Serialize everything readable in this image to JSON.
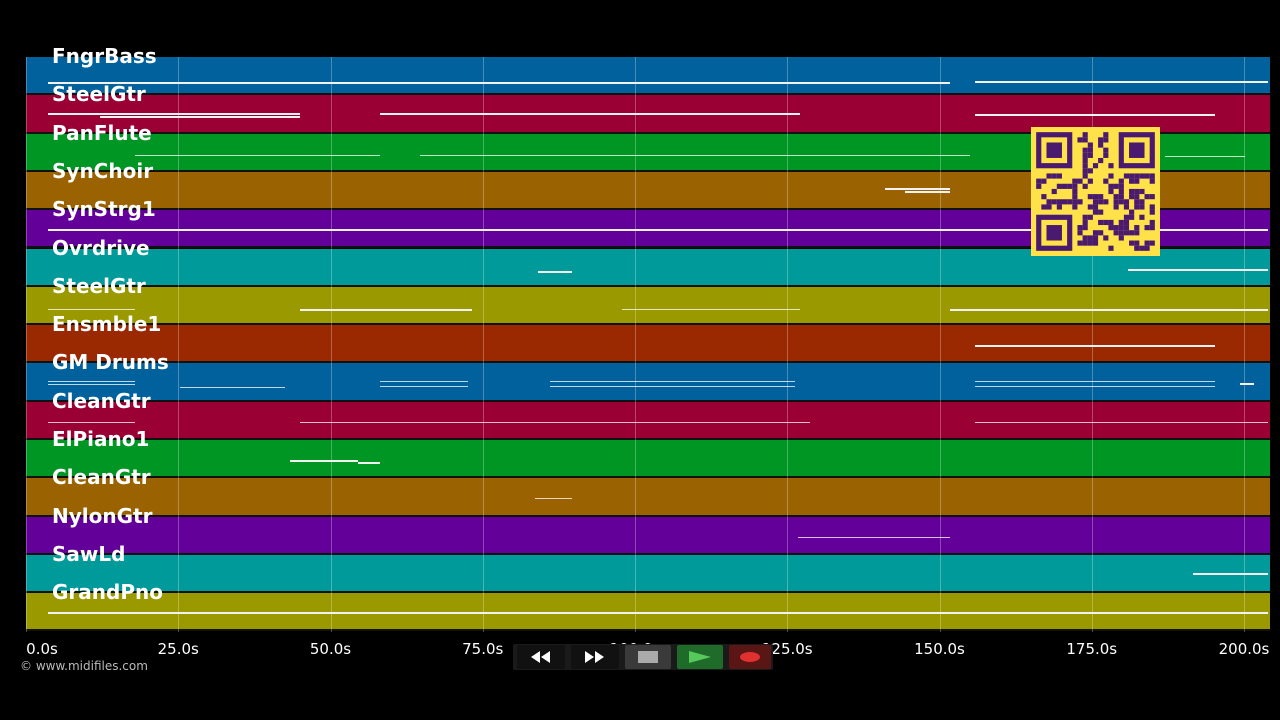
{
  "tracks": [
    {
      "name": "FngrBass",
      "color": "#00619c"
    },
    {
      "name": "SteelGtr",
      "color": "#9a0033"
    },
    {
      "name": "PanFlute",
      "color": "#009624"
    },
    {
      "name": "SynChoir",
      "color": "#9a6200"
    },
    {
      "name": "SynStrg1",
      "color": "#64009a"
    },
    {
      "name": "Ovrdrive",
      "color": "#009a9a"
    },
    {
      "name": "SteelGtr",
      "color": "#9a9a00"
    },
    {
      "name": "Ensmble1",
      "color": "#9a2800"
    },
    {
      "name": "GM Drums",
      "color": "#00619c"
    },
    {
      "name": "CleanGtr",
      "color": "#9a0033"
    },
    {
      "name": "ElPiano1",
      "color": "#009624"
    },
    {
      "name": "CleanGtr",
      "color": "#9a6200"
    },
    {
      "name": "NylonGtr",
      "color": "#64009a"
    },
    {
      "name": "SawLd",
      "color": "#009a9a"
    },
    {
      "name": "GrandPno",
      "color": "#9a9a00"
    }
  ],
  "time_axis": {
    "ticks": [
      "0.0s",
      "25.0s",
      "50.0s",
      "75.0s",
      "100.0s",
      "125.0s",
      "150.0s",
      "175.0s",
      "200.0s"
    ],
    "range_seconds": [
      0,
      204
    ]
  },
  "copyright": "© www.midifiles.com",
  "transport": {
    "rewind_icon": "rewind-icon",
    "fast_forward_icon": "fast-forward-icon",
    "stop_icon": "stop-icon",
    "play_icon": "play-icon",
    "record_icon": "record-icon"
  },
  "qr_code": {
    "background": "#ffe14a",
    "foreground": "#4a1a6e"
  }
}
